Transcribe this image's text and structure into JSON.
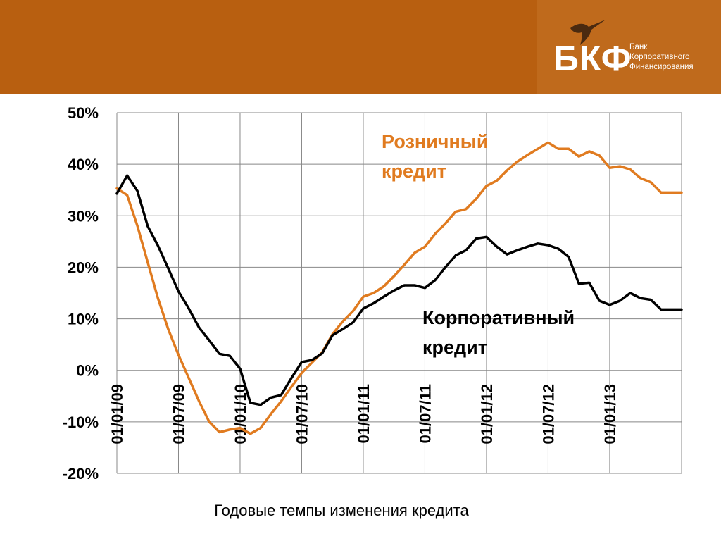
{
  "header": {
    "logo_text": "БКФ",
    "logo_sub": [
      "Банк",
      "Корпоративного",
      "Финансирования"
    ],
    "logo_icon": "hummingbird-icon",
    "color_header": "#b85f10",
    "color_logo_panel": "#bf6a1c"
  },
  "caption": "Годовые темпы изменения кредита",
  "chart_data": {
    "type": "line",
    "ylim": [
      -20,
      50
    ],
    "y_ticks": [
      50,
      40,
      30,
      20,
      10,
      0,
      -10,
      -20
    ],
    "y_tick_labels": [
      "50%",
      "40%",
      "30%",
      "20%",
      "10%",
      "0%",
      "-10%",
      "-20%"
    ],
    "x_range_months": [
      "2009-01",
      "2013-08"
    ],
    "x_ticks": [
      "2009-01",
      "2009-07",
      "2010-01",
      "2010-07",
      "2011-01",
      "2011-07",
      "2012-01",
      "2012-07",
      "2013-01"
    ],
    "x_tick_labels": [
      "01/01/09",
      "01/07/09",
      "01/01/10",
      "01/07/10",
      "01/01/11",
      "01/07/11",
      "01/01/12",
      "01/07/12",
      "01/01/13"
    ],
    "grid": true,
    "series": [
      {
        "name": "Розничный кредит",
        "label_lines": [
          "Розничный",
          "кредит"
        ],
        "color": "#e07b20",
        "x": [
          "2009-01",
          "2009-02",
          "2009-03",
          "2009-04",
          "2009-05",
          "2009-06",
          "2009-07",
          "2009-08",
          "2009-09",
          "2009-10",
          "2009-11",
          "2009-12",
          "2010-01",
          "2010-02",
          "2010-03",
          "2010-04",
          "2010-05",
          "2010-06",
          "2010-07",
          "2010-08",
          "2010-09",
          "2010-10",
          "2010-11",
          "2010-12",
          "2011-01",
          "2011-02",
          "2011-03",
          "2011-04",
          "2011-05",
          "2011-06",
          "2011-07",
          "2011-08",
          "2011-09",
          "2011-10",
          "2011-11",
          "2011-12",
          "2012-01",
          "2012-02",
          "2012-03",
          "2012-04",
          "2012-05",
          "2012-06",
          "2012-07",
          "2012-08",
          "2012-09",
          "2012-10",
          "2012-11",
          "2012-12",
          "2013-01",
          "2013-02",
          "2013-03",
          "2013-04",
          "2013-05",
          "2013-06",
          "2013-07",
          "2013-08"
        ],
        "values": [
          35.3,
          34.0,
          28.0,
          21.0,
          14.0,
          8.0,
          3.0,
          -1.5,
          -6.0,
          -10.0,
          -12.0,
          -11.5,
          -11.2,
          -12.3,
          -11.2,
          -8.5,
          -6.0,
          -3.2,
          -0.5,
          1.5,
          3.5,
          7.0,
          9.5,
          11.5,
          14.3,
          15.0,
          16.3,
          18.3,
          20.5,
          22.8,
          24.0,
          26.5,
          28.5,
          30.8,
          31.3,
          33.3,
          35.8,
          36.8,
          38.8,
          40.5,
          41.8,
          43.0,
          44.2,
          43.0,
          43.0,
          41.5,
          42.5,
          41.7,
          39.3,
          39.6,
          39.0,
          37.3,
          36.5,
          34.5,
          34.5,
          34.5
        ]
      },
      {
        "name": "Корпоративный кредит",
        "label_lines": [
          "Корпоративный",
          "кредит"
        ],
        "color": "#000000",
        "x": [
          "2009-01",
          "2009-02",
          "2009-03",
          "2009-04",
          "2009-05",
          "2009-06",
          "2009-07",
          "2009-08",
          "2009-09",
          "2009-10",
          "2009-11",
          "2009-12",
          "2010-01",
          "2010-02",
          "2010-03",
          "2010-04",
          "2010-05",
          "2010-06",
          "2010-07",
          "2010-08",
          "2010-09",
          "2010-10",
          "2010-11",
          "2010-12",
          "2011-01",
          "2011-02",
          "2011-03",
          "2011-04",
          "2011-05",
          "2011-06",
          "2011-07",
          "2011-08",
          "2011-09",
          "2011-10",
          "2011-11",
          "2011-12",
          "2012-01",
          "2012-02",
          "2012-03",
          "2012-04",
          "2012-05",
          "2012-06",
          "2012-07",
          "2012-08",
          "2012-09",
          "2012-10",
          "2012-11",
          "2012-12",
          "2013-01",
          "2013-02",
          "2013-03",
          "2013-04",
          "2013-05",
          "2013-06",
          "2013-07",
          "2013-08"
        ],
        "values": [
          34.3,
          37.8,
          34.8,
          28.0,
          24.2,
          19.8,
          15.3,
          12.0,
          8.3,
          5.8,
          3.2,
          2.8,
          0.3,
          -6.3,
          -6.7,
          -5.3,
          -4.8,
          -1.5,
          1.6,
          2.0,
          3.3,
          6.8,
          8.0,
          9.3,
          12.0,
          13.0,
          14.3,
          15.5,
          16.5,
          16.5,
          16.0,
          17.5,
          20.0,
          22.3,
          23.3,
          25.6,
          25.9,
          24.0,
          22.5,
          23.3,
          24.0,
          24.6,
          24.3,
          23.6,
          22.0,
          16.8,
          17.0,
          13.5,
          12.7,
          13.5,
          15.0,
          14.0,
          13.7,
          11.8,
          11.8,
          11.8
        ]
      }
    ]
  }
}
